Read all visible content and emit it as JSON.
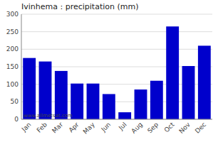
{
  "chart_data": {
    "type": "bar",
    "title": "Ivinhema : precipitation (mm)",
    "categories": [
      "Jan",
      "Feb",
      "Mar",
      "Apr",
      "May",
      "Jun",
      "Jul",
      "Aug",
      "Sep",
      "Oct",
      "Nov",
      "Dec"
    ],
    "values": [
      175,
      165,
      138,
      102,
      102,
      72,
      20,
      85,
      110,
      265,
      152,
      210
    ],
    "color": "#0000cc",
    "ylim": [
      0,
      300
    ],
    "yticks": [
      0,
      50,
      100,
      150,
      200,
      250,
      300
    ],
    "grid": true,
    "annotations": [
      "www.allmetsat.com"
    ]
  }
}
